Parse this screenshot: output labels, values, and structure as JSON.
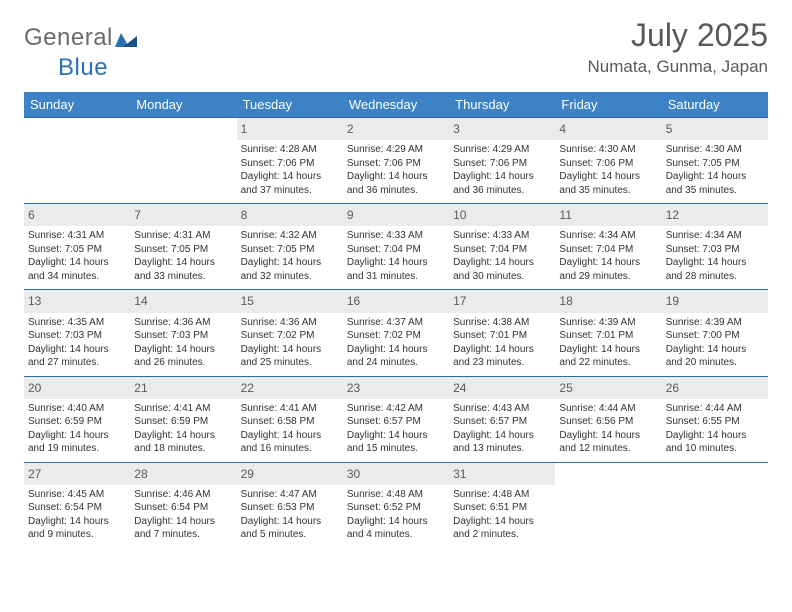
{
  "brand": {
    "text1": "General",
    "text2": "Blue"
  },
  "title": "July 2025",
  "location": "Numata, Gunma, Japan",
  "colors": {
    "header_bg": "#3d82c4",
    "header_text": "#ffffff",
    "daynum_bg": "#ebebeb",
    "grid_line": "#2f6aa8",
    "text": "#333333",
    "logo_gray": "#6b6b6b",
    "logo_blue": "#2b6fb3"
  },
  "days_of_week": [
    "Sunday",
    "Monday",
    "Tuesday",
    "Wednesday",
    "Thursday",
    "Friday",
    "Saturday"
  ],
  "weeks": [
    [
      null,
      null,
      {
        "n": "1",
        "sr": "Sunrise: 4:28 AM",
        "ss": "Sunset: 7:06 PM",
        "d1": "Daylight: 14 hours",
        "d2": "and 37 minutes."
      },
      {
        "n": "2",
        "sr": "Sunrise: 4:29 AM",
        "ss": "Sunset: 7:06 PM",
        "d1": "Daylight: 14 hours",
        "d2": "and 36 minutes."
      },
      {
        "n": "3",
        "sr": "Sunrise: 4:29 AM",
        "ss": "Sunset: 7:06 PM",
        "d1": "Daylight: 14 hours",
        "d2": "and 36 minutes."
      },
      {
        "n": "4",
        "sr": "Sunrise: 4:30 AM",
        "ss": "Sunset: 7:06 PM",
        "d1": "Daylight: 14 hours",
        "d2": "and 35 minutes."
      },
      {
        "n": "5",
        "sr": "Sunrise: 4:30 AM",
        "ss": "Sunset: 7:05 PM",
        "d1": "Daylight: 14 hours",
        "d2": "and 35 minutes."
      }
    ],
    [
      {
        "n": "6",
        "sr": "Sunrise: 4:31 AM",
        "ss": "Sunset: 7:05 PM",
        "d1": "Daylight: 14 hours",
        "d2": "and 34 minutes."
      },
      {
        "n": "7",
        "sr": "Sunrise: 4:31 AM",
        "ss": "Sunset: 7:05 PM",
        "d1": "Daylight: 14 hours",
        "d2": "and 33 minutes."
      },
      {
        "n": "8",
        "sr": "Sunrise: 4:32 AM",
        "ss": "Sunset: 7:05 PM",
        "d1": "Daylight: 14 hours",
        "d2": "and 32 minutes."
      },
      {
        "n": "9",
        "sr": "Sunrise: 4:33 AM",
        "ss": "Sunset: 7:04 PM",
        "d1": "Daylight: 14 hours",
        "d2": "and 31 minutes."
      },
      {
        "n": "10",
        "sr": "Sunrise: 4:33 AM",
        "ss": "Sunset: 7:04 PM",
        "d1": "Daylight: 14 hours",
        "d2": "and 30 minutes."
      },
      {
        "n": "11",
        "sr": "Sunrise: 4:34 AM",
        "ss": "Sunset: 7:04 PM",
        "d1": "Daylight: 14 hours",
        "d2": "and 29 minutes."
      },
      {
        "n": "12",
        "sr": "Sunrise: 4:34 AM",
        "ss": "Sunset: 7:03 PM",
        "d1": "Daylight: 14 hours",
        "d2": "and 28 minutes."
      }
    ],
    [
      {
        "n": "13",
        "sr": "Sunrise: 4:35 AM",
        "ss": "Sunset: 7:03 PM",
        "d1": "Daylight: 14 hours",
        "d2": "and 27 minutes."
      },
      {
        "n": "14",
        "sr": "Sunrise: 4:36 AM",
        "ss": "Sunset: 7:03 PM",
        "d1": "Daylight: 14 hours",
        "d2": "and 26 minutes."
      },
      {
        "n": "15",
        "sr": "Sunrise: 4:36 AM",
        "ss": "Sunset: 7:02 PM",
        "d1": "Daylight: 14 hours",
        "d2": "and 25 minutes."
      },
      {
        "n": "16",
        "sr": "Sunrise: 4:37 AM",
        "ss": "Sunset: 7:02 PM",
        "d1": "Daylight: 14 hours",
        "d2": "and 24 minutes."
      },
      {
        "n": "17",
        "sr": "Sunrise: 4:38 AM",
        "ss": "Sunset: 7:01 PM",
        "d1": "Daylight: 14 hours",
        "d2": "and 23 minutes."
      },
      {
        "n": "18",
        "sr": "Sunrise: 4:39 AM",
        "ss": "Sunset: 7:01 PM",
        "d1": "Daylight: 14 hours",
        "d2": "and 22 minutes."
      },
      {
        "n": "19",
        "sr": "Sunrise: 4:39 AM",
        "ss": "Sunset: 7:00 PM",
        "d1": "Daylight: 14 hours",
        "d2": "and 20 minutes."
      }
    ],
    [
      {
        "n": "20",
        "sr": "Sunrise: 4:40 AM",
        "ss": "Sunset: 6:59 PM",
        "d1": "Daylight: 14 hours",
        "d2": "and 19 minutes."
      },
      {
        "n": "21",
        "sr": "Sunrise: 4:41 AM",
        "ss": "Sunset: 6:59 PM",
        "d1": "Daylight: 14 hours",
        "d2": "and 18 minutes."
      },
      {
        "n": "22",
        "sr": "Sunrise: 4:41 AM",
        "ss": "Sunset: 6:58 PM",
        "d1": "Daylight: 14 hours",
        "d2": "and 16 minutes."
      },
      {
        "n": "23",
        "sr": "Sunrise: 4:42 AM",
        "ss": "Sunset: 6:57 PM",
        "d1": "Daylight: 14 hours",
        "d2": "and 15 minutes."
      },
      {
        "n": "24",
        "sr": "Sunrise: 4:43 AM",
        "ss": "Sunset: 6:57 PM",
        "d1": "Daylight: 14 hours",
        "d2": "and 13 minutes."
      },
      {
        "n": "25",
        "sr": "Sunrise: 4:44 AM",
        "ss": "Sunset: 6:56 PM",
        "d1": "Daylight: 14 hours",
        "d2": "and 12 minutes."
      },
      {
        "n": "26",
        "sr": "Sunrise: 4:44 AM",
        "ss": "Sunset: 6:55 PM",
        "d1": "Daylight: 14 hours",
        "d2": "and 10 minutes."
      }
    ],
    [
      {
        "n": "27",
        "sr": "Sunrise: 4:45 AM",
        "ss": "Sunset: 6:54 PM",
        "d1": "Daylight: 14 hours",
        "d2": "and 9 minutes."
      },
      {
        "n": "28",
        "sr": "Sunrise: 4:46 AM",
        "ss": "Sunset: 6:54 PM",
        "d1": "Daylight: 14 hours",
        "d2": "and 7 minutes."
      },
      {
        "n": "29",
        "sr": "Sunrise: 4:47 AM",
        "ss": "Sunset: 6:53 PM",
        "d1": "Daylight: 14 hours",
        "d2": "and 5 minutes."
      },
      {
        "n": "30",
        "sr": "Sunrise: 4:48 AM",
        "ss": "Sunset: 6:52 PM",
        "d1": "Daylight: 14 hours",
        "d2": "and 4 minutes."
      },
      {
        "n": "31",
        "sr": "Sunrise: 4:48 AM",
        "ss": "Sunset: 6:51 PM",
        "d1": "Daylight: 14 hours",
        "d2": "and 2 minutes."
      },
      null,
      null
    ]
  ]
}
